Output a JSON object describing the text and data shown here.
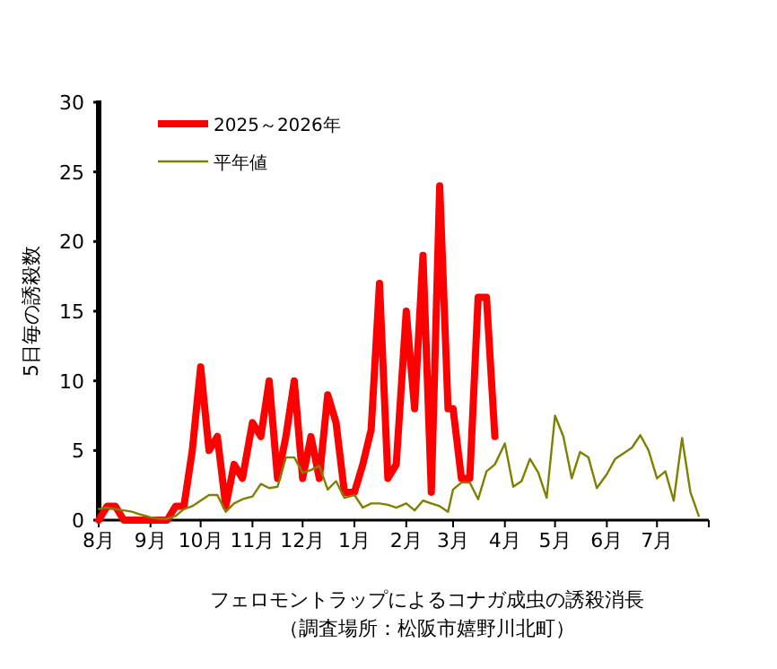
{
  "chart_data": {
    "type": "line",
    "title": "フェロモントラップによるコナガ成虫の誘殺消長",
    "subtitle": "（調査場所：松阪市嬉野川北町）",
    "ylabel": "5日毎の誘殺数",
    "x": [
      "2025-08-01",
      "2025-08-06",
      "2025-08-11",
      "2025-08-16",
      "2025-08-21",
      "2025-08-26",
      "2025-09-01",
      "2025-09-06",
      "2025-09-11",
      "2025-09-16",
      "2025-09-21",
      "2025-09-26",
      "2025-10-01",
      "2025-10-06",
      "2025-10-11",
      "2025-10-16",
      "2025-10-21",
      "2025-10-26",
      "2025-11-01",
      "2025-11-06",
      "2025-11-11",
      "2025-11-16",
      "2025-11-21",
      "2025-11-26",
      "2025-12-01",
      "2025-12-06",
      "2025-12-11",
      "2025-12-16",
      "2025-12-21",
      "2025-12-26",
      "2026-01-01",
      "2026-01-06",
      "2026-01-11",
      "2026-01-16",
      "2026-01-21",
      "2026-01-26",
      "2026-02-01",
      "2026-02-06",
      "2026-02-11",
      "2026-02-16",
      "2026-02-21",
      "2026-02-26",
      "2026-03-01",
      "2026-03-06",
      "2026-03-11",
      "2026-03-16",
      "2026-03-21",
      "2026-03-26",
      "2026-04-01",
      "2026-04-06",
      "2026-04-11",
      "2026-04-16",
      "2026-04-21",
      "2026-04-26",
      "2026-05-01",
      "2026-05-06",
      "2026-05-11",
      "2026-05-16",
      "2026-05-21",
      "2026-05-26",
      "2026-06-01",
      "2026-06-06",
      "2026-06-11",
      "2026-06-16",
      "2026-06-21",
      "2026-06-26",
      "2026-07-01",
      "2026-07-06",
      "2026-07-11",
      "2026-07-16",
      "2026-07-21",
      "2026-07-26"
    ],
    "series": [
      {
        "name": "2025～2026年",
        "color": "#ff0000",
        "values": [
          0,
          1,
          1,
          0,
          0,
          0,
          0,
          0,
          0,
          1,
          1,
          5,
          11,
          5,
          6,
          1,
          4,
          3,
          7,
          6,
          10,
          3,
          6,
          10,
          3,
          6,
          3,
          9,
          7,
          2,
          2,
          4,
          6.5,
          17,
          3,
          4,
          15,
          8,
          19,
          2,
          24,
          8,
          8,
          3,
          3,
          16,
          16,
          6,
          null,
          null,
          null,
          null,
          null,
          null,
          null,
          null,
          null,
          null,
          null,
          null,
          null,
          null,
          null,
          null,
          null,
          null,
          null,
          null,
          null,
          null,
          null,
          null
        ]
      },
      {
        "name": "平年値",
        "color": "#808000",
        "values": [
          0.8,
          0.9,
          0.8,
          0.7,
          0.6,
          0.4,
          0.2,
          0.1,
          0.1,
          0.3,
          0.8,
          1.0,
          1.4,
          1.8,
          1.8,
          0.6,
          1.2,
          1.5,
          1.7,
          2.6,
          2.3,
          2.4,
          4.5,
          4.5,
          3.4,
          3.6,
          3.9,
          2.2,
          2.8,
          1.6,
          1.8,
          0.9,
          1.2,
          1.2,
          1.1,
          0.9,
          1.2,
          0.7,
          1.4,
          1.2,
          1.0,
          0.6,
          2.2,
          2.7,
          2.7,
          1.5,
          3.5,
          4.0,
          5.5,
          2.4,
          2.8,
          4.4,
          3.4,
          1.6,
          7.5,
          6.0,
          3.0,
          4.9,
          4.5,
          2.3,
          3.3,
          4.4,
          4.8,
          5.2,
          6.1,
          5.0,
          3.0,
          3.5,
          1.4,
          5.9,
          2.0,
          0.3
        ]
      }
    ],
    "xlim": [
      "2025-08-01",
      "2026-08-01"
    ],
    "xticks": [
      {
        "value": "2025-08-01",
        "label": "8月"
      },
      {
        "value": "2025-09-01",
        "label": "9月"
      },
      {
        "value": "2025-10-01",
        "label": "10月"
      },
      {
        "value": "2025-11-01",
        "label": "11月"
      },
      {
        "value": "2025-12-01",
        "label": "12月"
      },
      {
        "value": "2026-01-01",
        "label": "1月"
      },
      {
        "value": "2026-02-01",
        "label": "2月"
      },
      {
        "value": "2026-03-01",
        "label": "3月"
      },
      {
        "value": "2026-04-01",
        "label": "4月"
      },
      {
        "value": "2026-05-01",
        "label": "5月"
      },
      {
        "value": "2026-06-01",
        "label": "6月"
      },
      {
        "value": "2026-07-01",
        "label": "7月"
      },
      {
        "value": "2026-08-01",
        "label": null
      }
    ],
    "ylim": [
      0,
      30
    ],
    "yticks": [
      0,
      5,
      10,
      15,
      20,
      25,
      30
    ],
    "legend": "top left"
  }
}
